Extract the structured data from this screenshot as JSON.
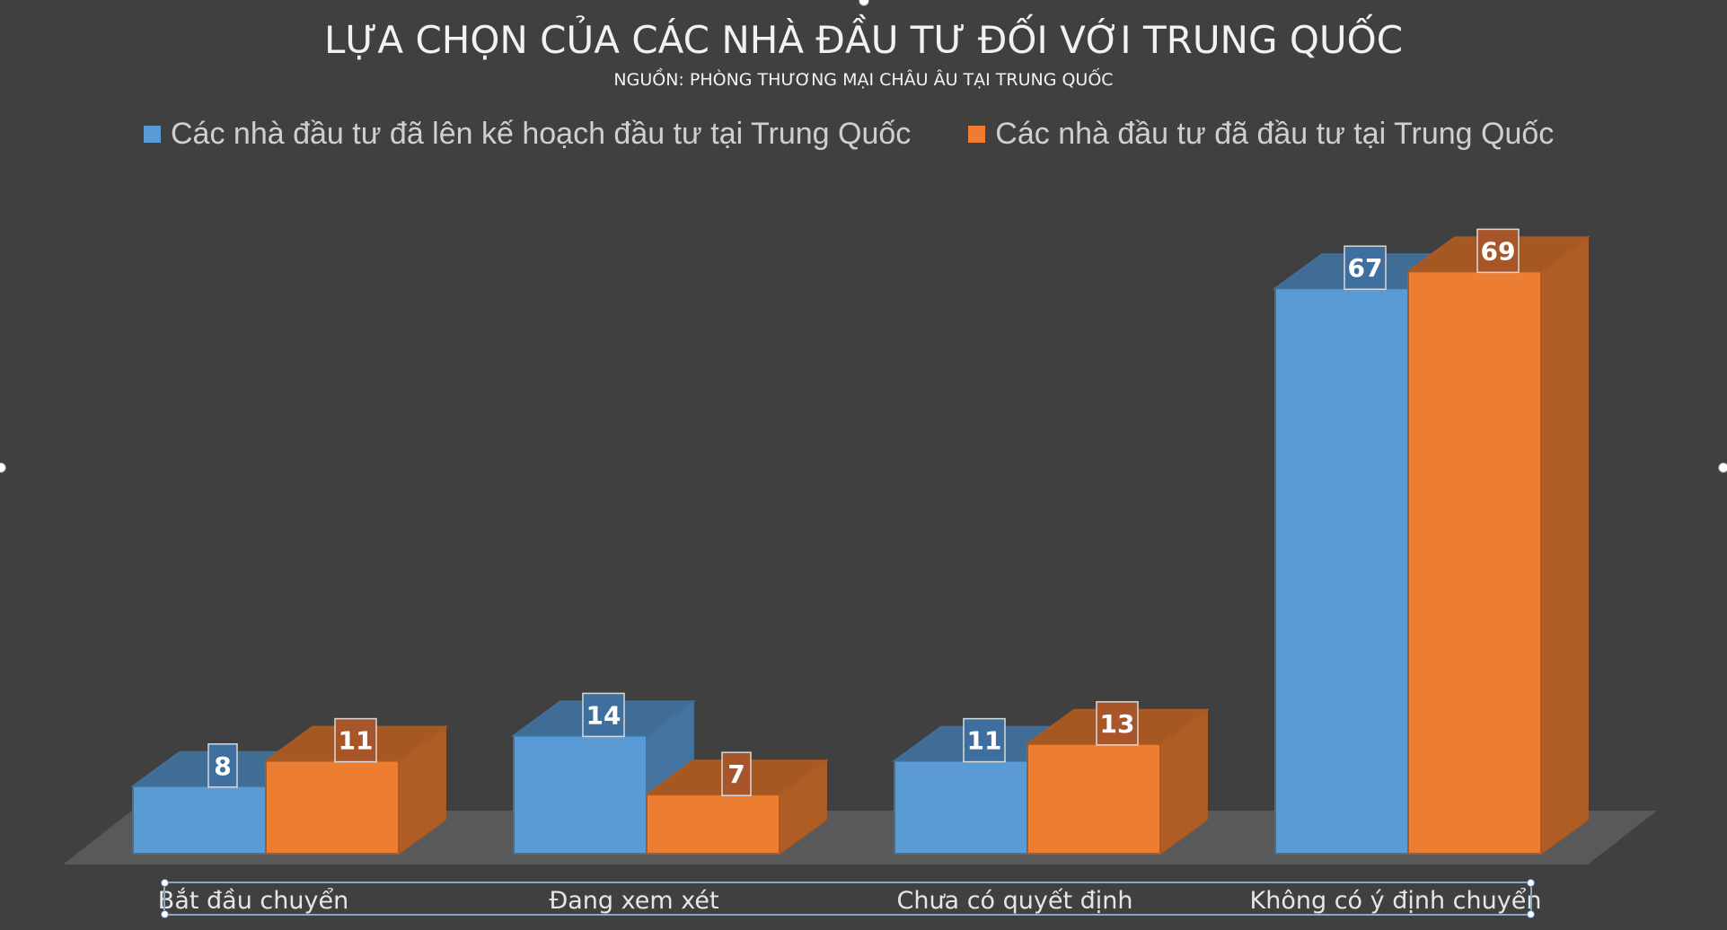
{
  "chart_data": {
    "type": "bar",
    "title": "LỰA CHỌN CỦA CÁC NHÀ ĐẦU TƯ ĐỐI VỚI TRUNG QUỐC",
    "subtitle": "NGUỒN: PHÒNG THƯƠNG MẠI CHÂU ÂU TẠI TRUNG QUỐC",
    "categories": [
      "Bắt đầu chuyển",
      "Đang xem xét",
      "Chưa có quyết định",
      "Không có ý định chuyển"
    ],
    "series": [
      {
        "name": "Các nhà đầu tư đã lên kế hoạch đầu tư tại Trung Quốc",
        "values": [
          8,
          14,
          11,
          67
        ],
        "color": "#5b9bd5"
      },
      {
        "name": "Các nhà đầu tư đã đầu tư tại Trung Quốc",
        "values": [
          11,
          7,
          13,
          69
        ],
        "color": "#ed7d31"
      }
    ],
    "ylim": [
      0,
      70
    ],
    "xlabel": "",
    "ylabel": "",
    "legend_position": "top",
    "grid": false,
    "style": "3d-clustered-column",
    "data_labels": true
  },
  "colors": {
    "background": "#404040",
    "floor": "#595959",
    "text": "#f2f2f2"
  }
}
